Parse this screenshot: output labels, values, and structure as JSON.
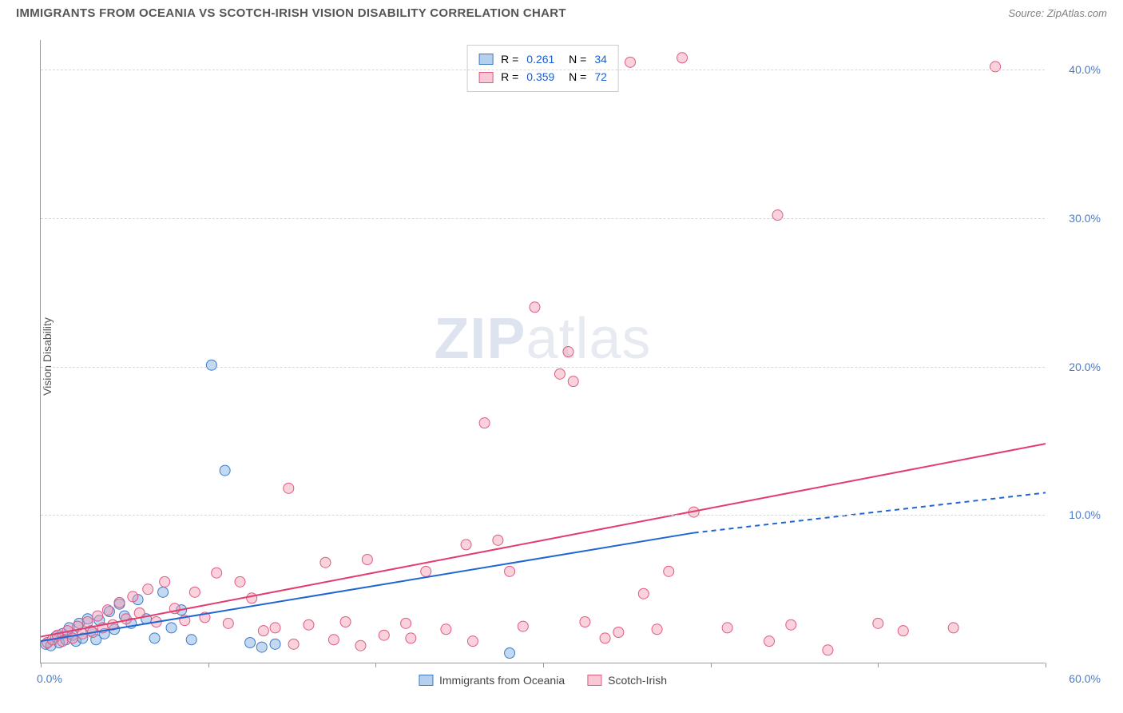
{
  "header": {
    "title": "IMMIGRANTS FROM OCEANIA VS SCOTCH-IRISH VISION DISABILITY CORRELATION CHART",
    "source": "Source: ZipAtlas.com"
  },
  "watermark": {
    "prefix": "ZIP",
    "suffix": "atlas"
  },
  "chart": {
    "type": "scatter",
    "ylabel": "Vision Disability",
    "xlim": [
      0,
      60
    ],
    "ylim": [
      0,
      42
    ],
    "x_ticks": [
      0,
      10,
      20,
      30,
      40,
      50,
      60
    ],
    "x_tick_labels": {
      "first": "0.0%",
      "last": "60.0%"
    },
    "y_gridlines": [
      10,
      20,
      30,
      40
    ],
    "y_tick_labels": [
      "10.0%",
      "20.0%",
      "30.0%",
      "40.0%"
    ],
    "background_color": "#ffffff",
    "grid_color": "#d8d8d8",
    "axis_color": "#999999",
    "tick_label_color": "#4a7bc8",
    "marker_radius": 6.5,
    "marker_opacity": 0.45,
    "series": [
      {
        "name": "Immigrants from Oceania",
        "fill_color": "#7aa8e0",
        "stroke_color": "#3d7bc7",
        "legend_swatch_fill": "rgba(122,168,224,0.55)",
        "legend_swatch_border": "#3d7bc7",
        "R": "0.261",
        "N": "34",
        "trend": {
          "x1": 0,
          "y1": 1.5,
          "x2": 39,
          "y2": 8.8,
          "x2_dashed": 60,
          "y2_dashed": 11.5,
          "color": "#1f66d3",
          "width": 2
        },
        "points": [
          [
            0.3,
            1.3
          ],
          [
            0.6,
            1.2
          ],
          [
            0.9,
            1.8
          ],
          [
            1.1,
            1.4
          ],
          [
            1.3,
            2.0
          ],
          [
            1.5,
            1.6
          ],
          [
            1.7,
            2.4
          ],
          [
            1.9,
            1.9
          ],
          [
            2.1,
            1.5
          ],
          [
            2.3,
            2.7
          ],
          [
            2.5,
            1.7
          ],
          [
            2.8,
            3.0
          ],
          [
            3.0,
            2.2
          ],
          [
            3.3,
            1.6
          ],
          [
            3.5,
            2.9
          ],
          [
            3.8,
            2.0
          ],
          [
            4.1,
            3.5
          ],
          [
            4.4,
            2.3
          ],
          [
            4.7,
            4.0
          ],
          [
            5.0,
            3.2
          ],
          [
            5.4,
            2.7
          ],
          [
            5.8,
            4.3
          ],
          [
            6.3,
            3.0
          ],
          [
            6.8,
            1.7
          ],
          [
            7.3,
            4.8
          ],
          [
            7.8,
            2.4
          ],
          [
            8.4,
            3.6
          ],
          [
            9.0,
            1.6
          ],
          [
            10.2,
            20.1
          ],
          [
            11.0,
            13.0
          ],
          [
            12.5,
            1.4
          ],
          [
            13.2,
            1.1
          ],
          [
            14.0,
            1.3
          ],
          [
            28.0,
            0.7
          ]
        ]
      },
      {
        "name": "Scotch-Irish",
        "fill_color": "#f29bb2",
        "stroke_color": "#e05a84",
        "legend_swatch_fill": "rgba(242,155,178,0.55)",
        "legend_swatch_border": "#e05a84",
        "R": "0.359",
        "N": "72",
        "trend": {
          "x1": 0,
          "y1": 1.8,
          "x2": 60,
          "y2": 14.8,
          "color": "#e23d6e",
          "width": 2
        },
        "points": [
          [
            0.4,
            1.4
          ],
          [
            0.7,
            1.6
          ],
          [
            1.0,
            1.9
          ],
          [
            1.3,
            1.5
          ],
          [
            1.6,
            2.2
          ],
          [
            1.9,
            1.7
          ],
          [
            2.2,
            2.5
          ],
          [
            2.5,
            2.0
          ],
          [
            2.8,
            2.8
          ],
          [
            3.1,
            2.1
          ],
          [
            3.4,
            3.2
          ],
          [
            3.7,
            2.4
          ],
          [
            4.0,
            3.6
          ],
          [
            4.3,
            2.6
          ],
          [
            4.7,
            4.1
          ],
          [
            5.1,
            3.0
          ],
          [
            5.5,
            4.5
          ],
          [
            5.9,
            3.4
          ],
          [
            6.4,
            5.0
          ],
          [
            6.9,
            2.8
          ],
          [
            7.4,
            5.5
          ],
          [
            8.0,
            3.7
          ],
          [
            8.6,
            2.9
          ],
          [
            9.2,
            4.8
          ],
          [
            9.8,
            3.1
          ],
          [
            10.5,
            6.1
          ],
          [
            11.2,
            2.7
          ],
          [
            11.9,
            5.5
          ],
          [
            12.6,
            4.4
          ],
          [
            13.3,
            2.2
          ],
          [
            14.0,
            2.4
          ],
          [
            14.8,
            11.8
          ],
          [
            15.1,
            1.3
          ],
          [
            16.0,
            2.6
          ],
          [
            17.0,
            6.8
          ],
          [
            17.5,
            1.6
          ],
          [
            18.2,
            2.8
          ],
          [
            19.1,
            1.2
          ],
          [
            19.5,
            7.0
          ],
          [
            20.5,
            1.9
          ],
          [
            21.8,
            2.7
          ],
          [
            22.1,
            1.7
          ],
          [
            23.0,
            6.2
          ],
          [
            24.2,
            2.3
          ],
          [
            25.4,
            8.0
          ],
          [
            25.8,
            1.5
          ],
          [
            26.5,
            16.2
          ],
          [
            27.3,
            8.3
          ],
          [
            28.0,
            6.2
          ],
          [
            28.8,
            2.5
          ],
          [
            29.5,
            24.0
          ],
          [
            31.0,
            19.5
          ],
          [
            31.5,
            21.0
          ],
          [
            31.8,
            19.0
          ],
          [
            32.5,
            2.8
          ],
          [
            33.7,
            1.7
          ],
          [
            34.5,
            2.1
          ],
          [
            35.2,
            40.5
          ],
          [
            36.0,
            4.7
          ],
          [
            36.8,
            2.3
          ],
          [
            37.5,
            6.2
          ],
          [
            38.3,
            40.8
          ],
          [
            39.0,
            10.2
          ],
          [
            41.0,
            2.4
          ],
          [
            43.5,
            1.5
          ],
          [
            44.0,
            30.2
          ],
          [
            44.8,
            2.6
          ],
          [
            47.0,
            0.9
          ],
          [
            50.0,
            2.7
          ],
          [
            51.5,
            2.2
          ],
          [
            54.5,
            2.4
          ],
          [
            57.0,
            40.2
          ]
        ]
      }
    ]
  },
  "legend_bottom": {
    "items": [
      {
        "label": "Immigrants from Oceania",
        "fill": "rgba(122,168,224,0.55)",
        "border": "#3d7bc7"
      },
      {
        "label": "Scotch-Irish",
        "fill": "rgba(242,155,178,0.55)",
        "border": "#e05a84"
      }
    ]
  }
}
